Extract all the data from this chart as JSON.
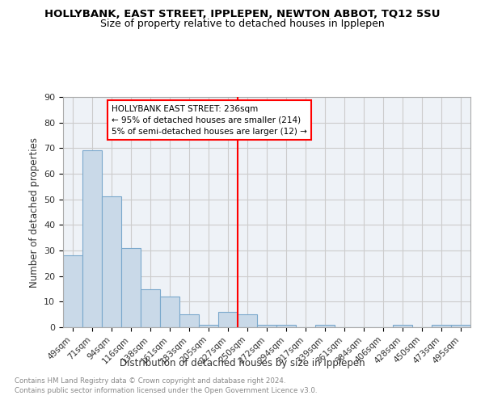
{
  "title": "HOLLYBANK, EAST STREET, IPPLEPEN, NEWTON ABBOT, TQ12 5SU",
  "subtitle": "Size of property relative to detached houses in Ipplepen",
  "xlabel": "Distribution of detached houses by size in Ipplepen",
  "ylabel": "Number of detached properties",
  "footnote1": "Contains HM Land Registry data © Crown copyright and database right 2024.",
  "footnote2": "Contains public sector information licensed under the Open Government Licence v3.0.",
  "bar_labels": [
    "49sqm",
    "71sqm",
    "94sqm",
    "116sqm",
    "138sqm",
    "161sqm",
    "183sqm",
    "205sqm",
    "227sqm",
    "250sqm",
    "272sqm",
    "294sqm",
    "317sqm",
    "339sqm",
    "361sqm",
    "384sqm",
    "406sqm",
    "428sqm",
    "450sqm",
    "473sqm",
    "495sqm"
  ],
  "bar_values": [
    28,
    69,
    51,
    31,
    15,
    12,
    5,
    1,
    6,
    5,
    1,
    1,
    0,
    1,
    0,
    0,
    0,
    1,
    0,
    1,
    1
  ],
  "bar_color": "#c9d9e8",
  "bar_edgecolor": "#7aa8cc",
  "grid_color": "#cccccc",
  "background_color": "#eef2f7",
  "vline_x": 8.5,
  "vline_color": "red",
  "annotation_line1": "HOLLYBANK EAST STREET: 236sqm",
  "annotation_line2": "← 95% of detached houses are smaller (214)",
  "annotation_line3": "5% of semi-detached houses are larger (12) →",
  "annotation_box_color": "red",
  "ylim": [
    0,
    90
  ],
  "yticks": [
    0,
    10,
    20,
    30,
    40,
    50,
    60,
    70,
    80,
    90
  ]
}
